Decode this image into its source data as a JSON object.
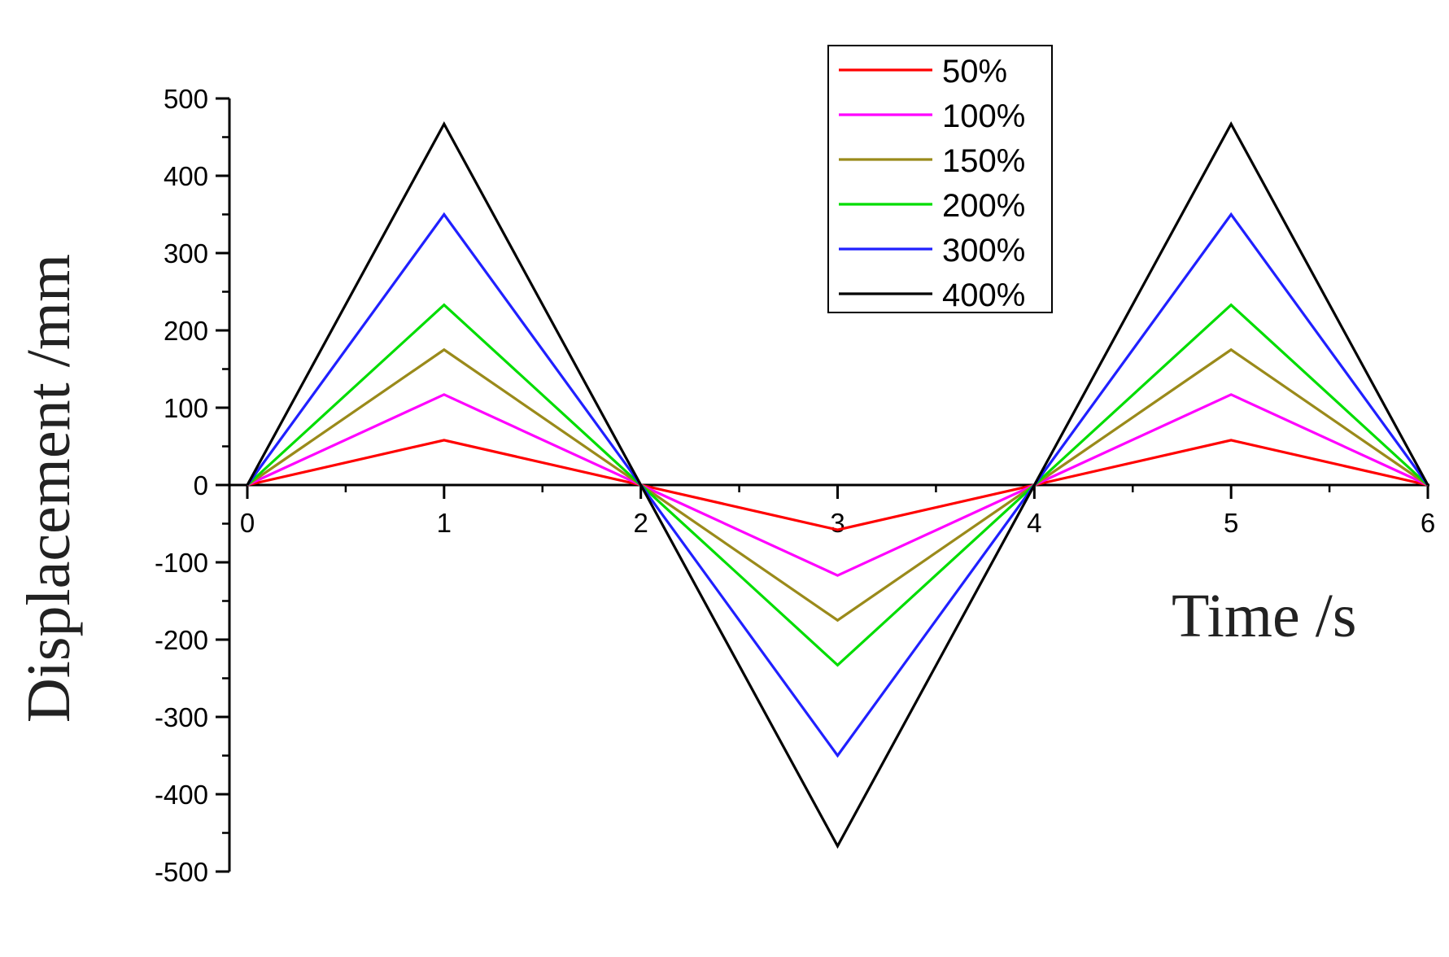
{
  "chart_data": {
    "type": "line",
    "xlabel": "Time /s",
    "ylabel": "Displacement  /mm",
    "xlim": [
      0,
      6
    ],
    "ylim": [
      -500,
      500
    ],
    "xticks": [
      0,
      1,
      2,
      3,
      4,
      5,
      6
    ],
    "yticks": [
      -500,
      -400,
      -300,
      -200,
      -100,
      0,
      100,
      200,
      300,
      400,
      500
    ],
    "grid": false,
    "legend_position": "top-right",
    "x": [
      0,
      1,
      2,
      3,
      4,
      5,
      6
    ],
    "series": [
      {
        "name": "50%",
        "color": "#ff0000",
        "values": [
          0,
          58,
          0,
          -58,
          0,
          58,
          0
        ]
      },
      {
        "name": "100%",
        "color": "#ff00ff",
        "values": [
          0,
          117,
          0,
          -117,
          0,
          117,
          0
        ]
      },
      {
        "name": "150%",
        "color": "#9a8a1a",
        "values": [
          0,
          175,
          0,
          -175,
          0,
          175,
          0
        ]
      },
      {
        "name": "200%",
        "color": "#00dd00",
        "values": [
          0,
          233,
          0,
          -233,
          0,
          233,
          0
        ]
      },
      {
        "name": "300%",
        "color": "#2020ff",
        "values": [
          0,
          350,
          0,
          -350,
          0,
          350,
          0
        ]
      },
      {
        "name": "400%",
        "color": "#000000",
        "values": [
          0,
          467,
          0,
          -467,
          0,
          467,
          0
        ]
      }
    ]
  }
}
